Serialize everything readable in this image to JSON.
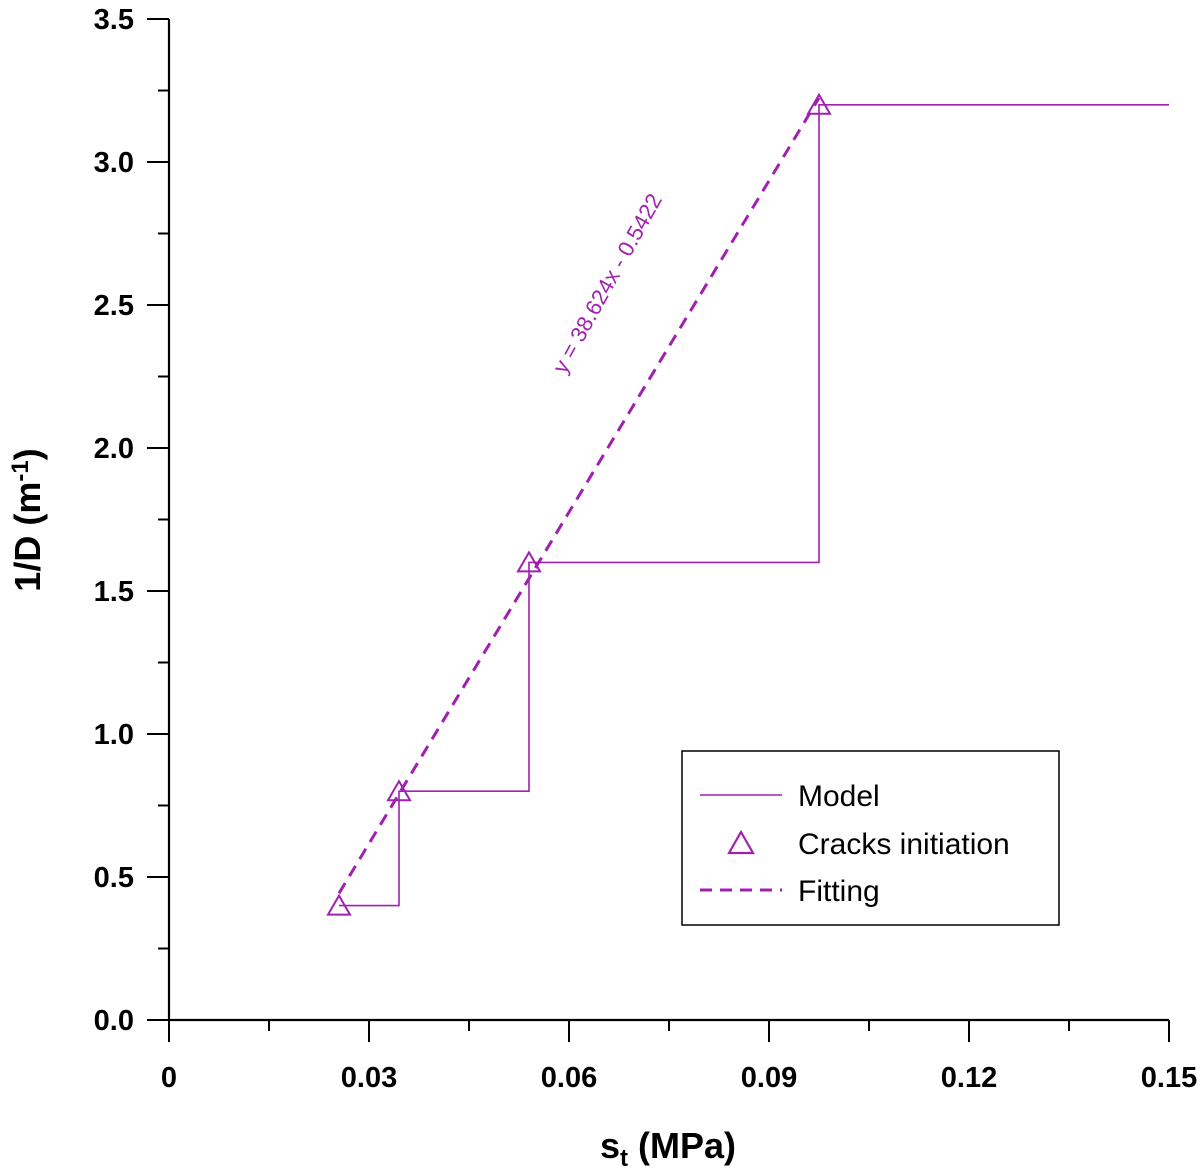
{
  "chart_data": {
    "type": "line",
    "xlabel": {
      "base": "s",
      "sub": "t",
      "rest": " (MPa)"
    },
    "ylabel": {
      "base": "1/D (m",
      "sup": "-1",
      "rest": ")"
    },
    "xlim": [
      0,
      0.15
    ],
    "ylim": [
      0,
      3.5
    ],
    "xticks": [
      "0",
      "0.03",
      "0.06",
      "0.09",
      "0.12",
      "0.15"
    ],
    "yticks": [
      "0.0",
      "0.5",
      "1.0",
      "1.5",
      "2.0",
      "2.5",
      "3.0",
      "3.5"
    ],
    "color": "#A020B0",
    "series": [
      {
        "name": "Model",
        "style": "solid-step",
        "points": [
          [
            0.0255,
            0.4
          ],
          [
            0.0345,
            0.4
          ],
          [
            0.0345,
            0.8
          ],
          [
            0.054,
            0.8
          ],
          [
            0.054,
            1.6
          ],
          [
            0.0975,
            1.6
          ],
          [
            0.0975,
            3.2
          ],
          [
            0.15,
            3.2
          ]
        ]
      },
      {
        "name": "Cracks initiation",
        "style": "triangle-markers",
        "points": [
          [
            0.0255,
            0.4
          ],
          [
            0.0345,
            0.8
          ],
          [
            0.054,
            1.6
          ],
          [
            0.0975,
            3.2
          ]
        ]
      },
      {
        "name": "Fitting",
        "style": "dashed",
        "points": [
          [
            0.0255,
            0.443
          ],
          [
            0.0975,
            3.224
          ]
        ]
      }
    ],
    "annotation": "y = 38.624x - 0.5422",
    "legend_position": "bottom-right"
  }
}
